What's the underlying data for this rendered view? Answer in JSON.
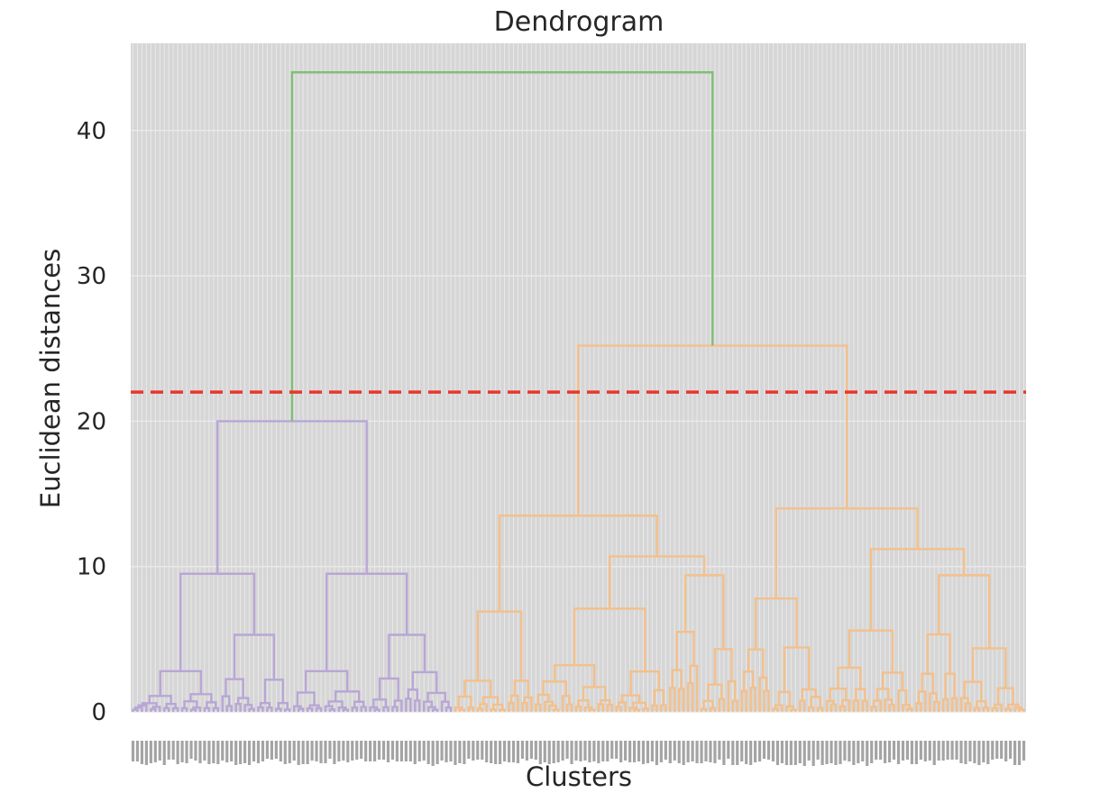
{
  "chart_data": {
    "type": "dendrogram",
    "title": "Dendrogram",
    "xlabel": "Clusters",
    "ylabel": "Euclidean distances",
    "ylim": [
      0,
      46
    ],
    "yticks": [
      0,
      10,
      20,
      30,
      40
    ],
    "n_leaves": 200,
    "grid": true,
    "threshold_line": {
      "value": 22,
      "color": "#e8372b",
      "style": "dashed"
    },
    "colors": {
      "background": "#d6d6d6",
      "grid": "#e9e9e9",
      "cluster_1": "#b8a6d6",
      "cluster_2": "#f3c08c",
      "root_link": "#7fbf73"
    },
    "merges": [
      {
        "name": "root",
        "height": 44,
        "left": "A",
        "right": "B",
        "color": "root_link"
      },
      {
        "name": "A",
        "height": 20,
        "left": "A1",
        "right": "A2",
        "color": "cluster_1"
      },
      {
        "name": "B",
        "height": 25.2,
        "left": "B1",
        "right": "B2",
        "color": "cluster_2"
      },
      {
        "name": "A1",
        "height": 9.5,
        "color": "cluster_1"
      },
      {
        "name": "A2",
        "height": 9.5,
        "color": "cluster_1"
      },
      {
        "name": "B1",
        "height": 13.5,
        "color": "cluster_2"
      },
      {
        "name": "B2",
        "height": 14,
        "color": "cluster_2"
      },
      {
        "name": "B1b",
        "height": 10.7,
        "color": "cluster_2"
      },
      {
        "name": "B2b",
        "height": 11.2,
        "color": "cluster_2"
      }
    ]
  }
}
